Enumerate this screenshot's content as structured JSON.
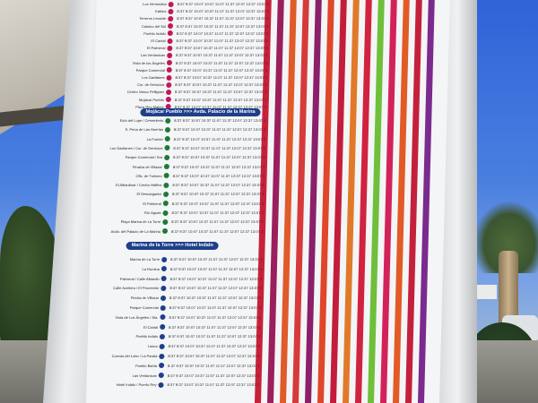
{
  "section_banners": [
    {
      "label": "Mojácar Pueblo  >>>  Avda. Palacio de la Marina"
    },
    {
      "label": "Marina de la Torre  >>>  Hotel Indalo"
    }
  ],
  "stops_top": [
    {
      "label": "Los Vermedios"
    },
    {
      "label": "Kaktus"
    },
    {
      "label": "Terreros Levante"
    },
    {
      "label": "Camino del Sol"
    },
    {
      "label": "Pueblo Indalo"
    },
    {
      "label": "El Cantal"
    },
    {
      "label": "El Palmeral"
    },
    {
      "label": "Las Ventanicas"
    },
    {
      "label": "Vista de los Ángeles"
    },
    {
      "label": "Parque Comercial"
    },
    {
      "label": "Los Gavilanes"
    },
    {
      "label": "Cor. de Servicios"
    },
    {
      "label": "Centro Vasco Pelliguez"
    },
    {
      "label": "Mojácar Pueblo"
    },
    {
      "label": "Plaza Rey Alabez"
    }
  ],
  "stops_middle": [
    {
      "label": "Ecto del Lupe / Cementerio"
    },
    {
      "label": "S. Pena de Las Huertas"
    },
    {
      "label": "La Fuente"
    },
    {
      "label": "Los Gavilanes / Cor. de Servicios"
    },
    {
      "label": "Parque Comercial / Sur"
    },
    {
      "label": "Pinaíza de Villazar"
    },
    {
      "label": "Ofic. de Turismo"
    },
    {
      "label": "El Albardinar / Centro Halfins"
    },
    {
      "label": "El Descargador"
    },
    {
      "label": "El Palmeral"
    },
    {
      "label": "Río Aguas"
    },
    {
      "label": "Playa Marina de La Torre"
    },
    {
      "label": "Avda. del Palacio de La Marina"
    }
  ],
  "stops_bottom": [
    {
      "label": "Marina de La Torre"
    },
    {
      "label": "La Rumina"
    },
    {
      "label": "Palmeral / Calle Albardin"
    },
    {
      "label": "Calle Aceitera / El Proveedor"
    },
    {
      "label": "Piedra de Villazar"
    },
    {
      "label": "Parque Comercial"
    },
    {
      "label": "Vista de Los Ángeles / Sta."
    },
    {
      "label": "El Cantal"
    },
    {
      "label": "Pueblo Indalo"
    },
    {
      "label": "Lasca"
    },
    {
      "label": "Cuevas del Lobo / La Parata"
    },
    {
      "label": "Pueblo Bahía"
    },
    {
      "label": "Las Ventanicas"
    },
    {
      "label": "Hotel Indalo / Puerto Rey"
    }
  ],
  "times_row_sample": "8:37  9:37  10:07  10:37  11:07  11:37  12:07  12:37  13:07  13:37  14:07  14:37",
  "column_colors": [
    "#c8213a",
    "#9a1f5c",
    "#e05a2a",
    "#d63a3a",
    "#8a1f6a",
    "#e0462a",
    "#c31d3b",
    "#e07a2a",
    "#d1223f",
    "#6fbf3a",
    "#d3225a",
    "#e25a26",
    "#c4203c",
    "#7b2a8e"
  ],
  "stop_dot_colors": {
    "top": "#c2185b",
    "middle": "#1e7a3a",
    "bottom": "#1e3f8a"
  }
}
